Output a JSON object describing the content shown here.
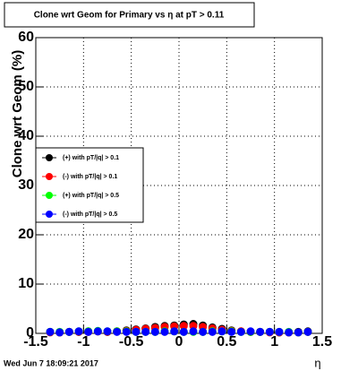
{
  "timestamp": "Wed Jun  7 18:09:21 2017",
  "chart_data": {
    "type": "scatter",
    "title": "Clone wrt Geom for Primary vs   η at pT > 0.11",
    "y_label": "Clone wrt Geom (%)",
    "x_label": "η",
    "xlim": [
      -1.5,
      1.5
    ],
    "xticks": [
      -1.5,
      -1,
      -0.5,
      0,
      0.5,
      1,
      1.5
    ],
    "ylim": [
      0,
      60
    ],
    "yticks": [
      0,
      10,
      20,
      30,
      40,
      50,
      60
    ],
    "grid": true,
    "legend": "left",
    "x": [
      -1.35,
      -1.25,
      -1.15,
      -1.05,
      -0.95,
      -0.85,
      -0.75,
      -0.65,
      -0.55,
      -0.45,
      -0.35,
      -0.25,
      -0.15,
      -0.05,
      0.05,
      0.15,
      0.25,
      0.35,
      0.45,
      0.55,
      0.65,
      0.75,
      0.85,
      0.95,
      1.05,
      1.15,
      1.25,
      1.35
    ],
    "series": [
      {
        "name": "(+) with pT/|q| > 0.1",
        "color": "#000000",
        "values": [
          0.3,
          0.2,
          0.3,
          0.3,
          0.4,
          0.4,
          0.3,
          0.4,
          0.6,
          0.8,
          1.0,
          1.3,
          1.5,
          1.6,
          1.8,
          1.9,
          1.6,
          1.2,
          0.9,
          0.6,
          0.4,
          0.3,
          0.3,
          0.3,
          0.2,
          0.2,
          0.3,
          0.4
        ]
      },
      {
        "name": "(-) with pT/|q| > 0.1",
        "color": "#ff0000",
        "values": [
          0.2,
          0.2,
          0.3,
          0.3,
          0.3,
          0.4,
          0.3,
          0.4,
          0.5,
          0.7,
          0.9,
          1.1,
          1.3,
          1.4,
          1.5,
          1.5,
          1.3,
          1.0,
          0.7,
          0.5,
          0.4,
          0.3,
          0.3,
          0.2,
          0.2,
          0.2,
          0.2,
          0.3
        ]
      },
      {
        "name": "(+) with pT/|q| > 0.5",
        "color": "#00ff00",
        "values": [
          0.3,
          0.3,
          0.3,
          0.4,
          0.4,
          0.5,
          0.4,
          0.4,
          0.4,
          0.3,
          0.3,
          0.3,
          0.4,
          0.4,
          0.3,
          0.3,
          0.3,
          0.4,
          0.4,
          0.4,
          0.3,
          0.3,
          0.3,
          0.3,
          0.3,
          0.3,
          0.2,
          0.3
        ]
      },
      {
        "name": "(-) with pT/|q| > 0.5",
        "color": "#0000ff",
        "values": [
          0.3,
          0.2,
          0.3,
          0.4,
          0.3,
          0.4,
          0.4,
          0.3,
          0.3,
          0.3,
          0.3,
          0.3,
          0.3,
          0.4,
          0.3,
          0.4,
          0.3,
          0.3,
          0.4,
          0.3,
          0.3,
          0.4,
          0.3,
          0.3,
          0.3,
          0.2,
          0.2,
          0.3
        ]
      }
    ]
  }
}
